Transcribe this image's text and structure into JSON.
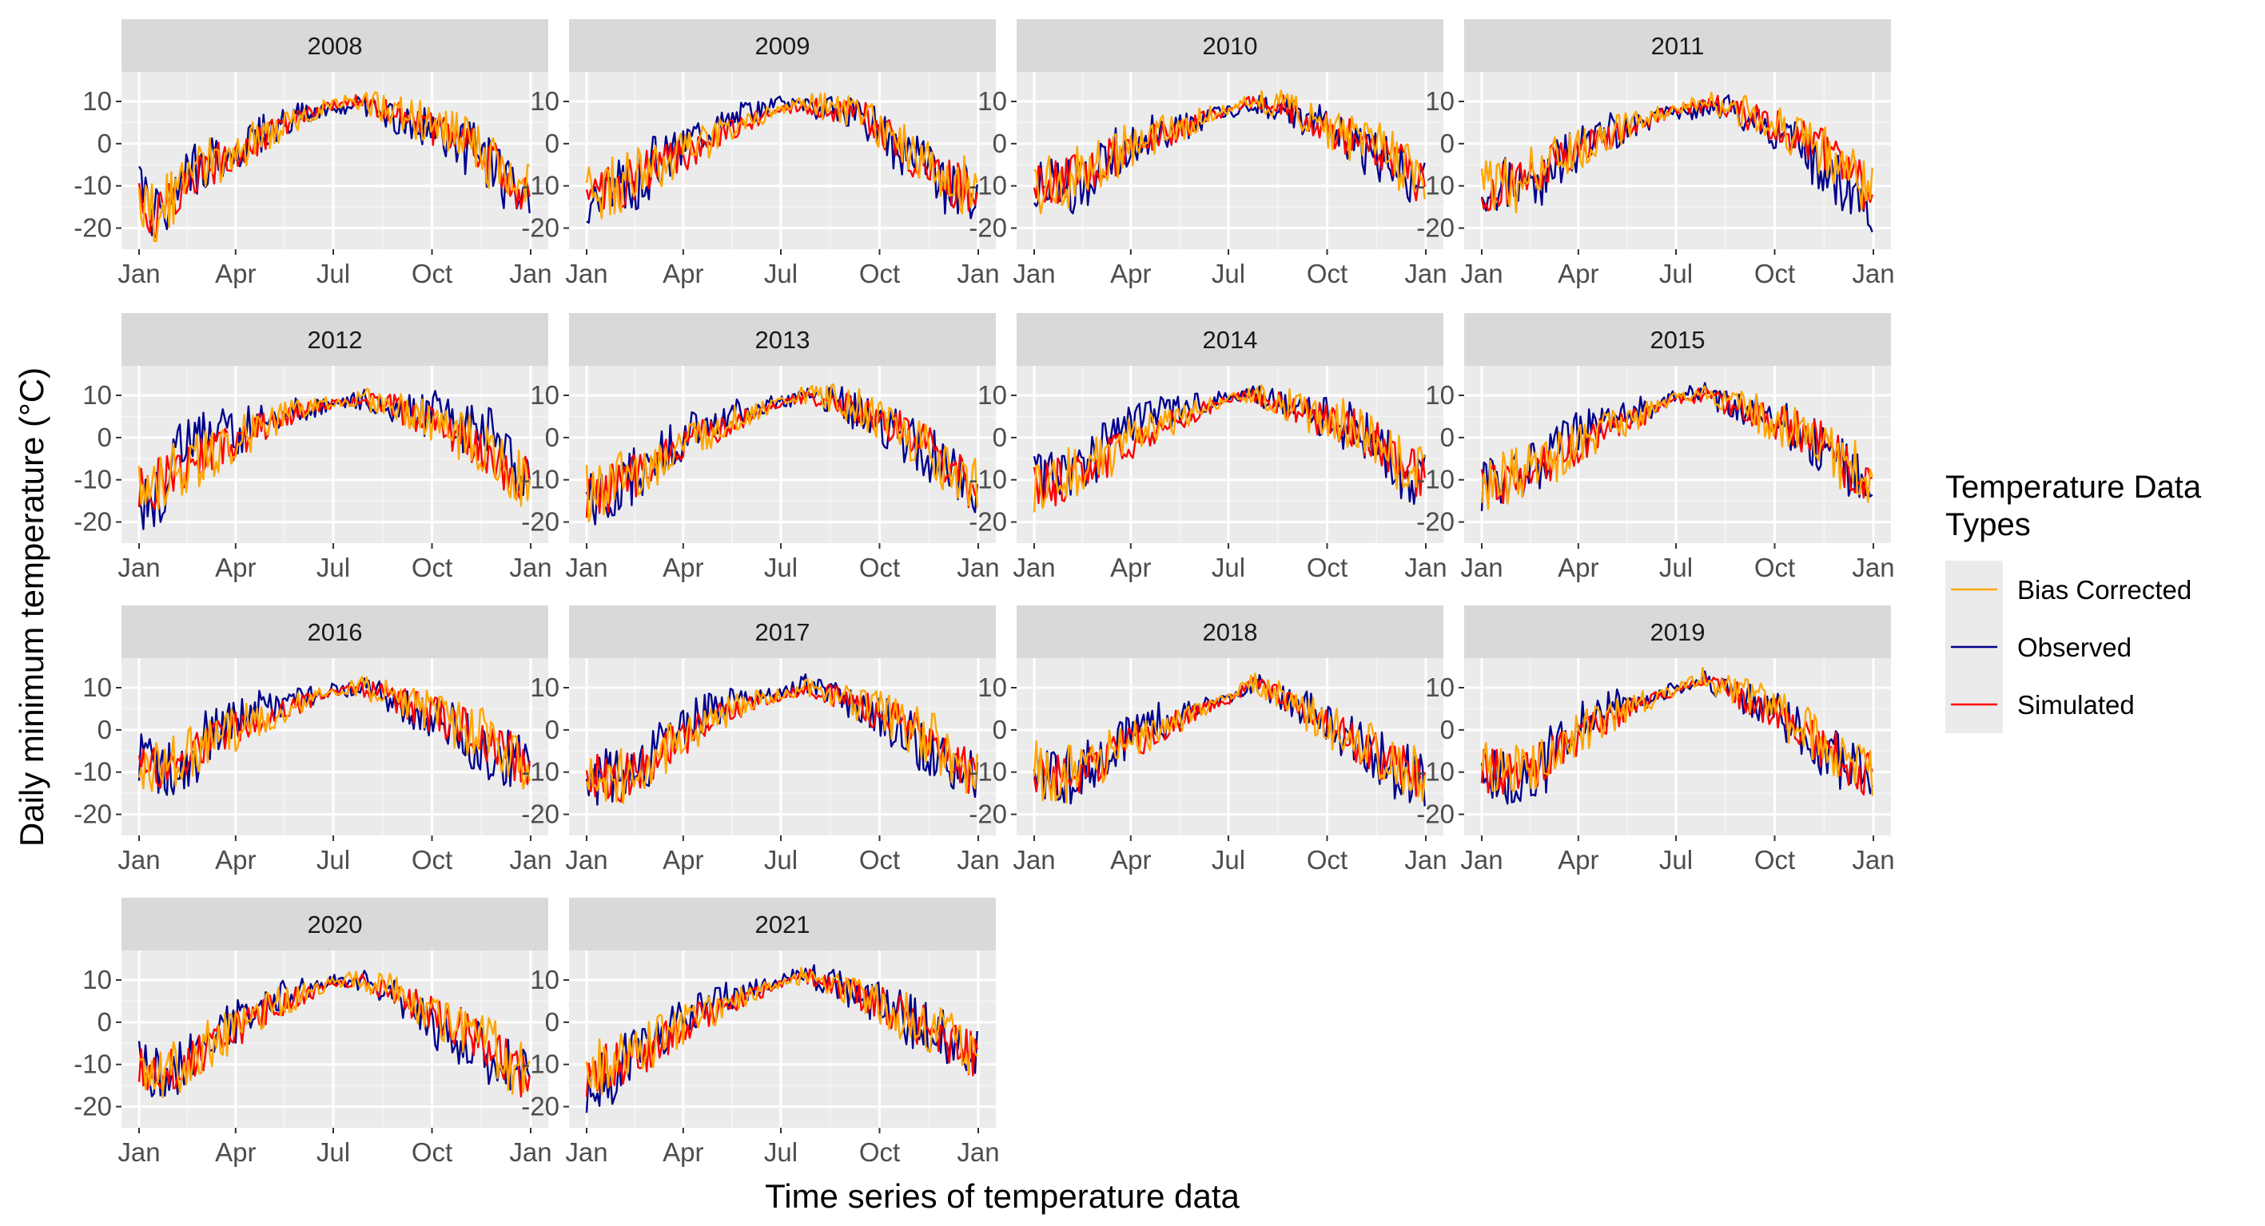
{
  "chart_data": {
    "type": "line",
    "xlabel": "Time series of temperature data",
    "ylabel": "Daily minimum temperature (°C)",
    "ylim": [
      -25,
      17
    ],
    "y_ticks": [
      "10",
      "0",
      "-10",
      "-20"
    ],
    "y_tick_values": [
      10,
      0,
      -10,
      -20
    ],
    "x_ticks": [
      "Jan",
      "Apr",
      "Jul",
      "Oct",
      "Jan"
    ],
    "x_tick_days": [
      0,
      90,
      181,
      273,
      365
    ],
    "grid": true,
    "legend": {
      "title": "Temperature Data Types",
      "position": "right",
      "entries": [
        {
          "label": "Bias Corrected",
          "color": "#FFA500"
        },
        {
          "label": "Observed",
          "color": "#00008B"
        },
        {
          "label": "Simulated",
          "color": "#FF0000"
        }
      ]
    },
    "panels": [
      {
        "year": "2008",
        "anchors": [
          [
            0,
            -12
          ],
          [
            15,
            -18
          ],
          [
            30,
            -13
          ],
          [
            60,
            -6
          ],
          [
            90,
            -2
          ],
          [
            120,
            2
          ],
          [
            150,
            6
          ],
          [
            181,
            9
          ],
          [
            205,
            10
          ],
          [
            230,
            8
          ],
          [
            260,
            5
          ],
          [
            290,
            2
          ],
          [
            320,
            -3
          ],
          [
            340,
            -7
          ],
          [
            365,
            -12
          ]
        ],
        "obs_offset": [
          1,
          2,
          1,
          1,
          1,
          0,
          -1,
          -1,
          0,
          -1,
          0,
          -2,
          -3
        ]
      },
      {
        "year": "2009",
        "anchors": [
          [
            0,
            -12
          ],
          [
            30,
            -10
          ],
          [
            60,
            -6
          ],
          [
            90,
            -3
          ],
          [
            120,
            1
          ],
          [
            150,
            5
          ],
          [
            181,
            8
          ],
          [
            205,
            9
          ],
          [
            230,
            8
          ],
          [
            260,
            6
          ],
          [
            290,
            0
          ],
          [
            320,
            -6
          ],
          [
            340,
            -10
          ],
          [
            365,
            -11
          ]
        ],
        "obs_offset": [
          0,
          -1,
          2,
          4,
          3,
          2,
          1,
          0,
          0,
          -1,
          -1,
          0,
          0
        ]
      },
      {
        "year": "2010",
        "anchors": [
          [
            0,
            -10
          ],
          [
            30,
            -9
          ],
          [
            60,
            -5
          ],
          [
            90,
            -1
          ],
          [
            120,
            2
          ],
          [
            150,
            5
          ],
          [
            181,
            8
          ],
          [
            205,
            10
          ],
          [
            230,
            9
          ],
          [
            260,
            5
          ],
          [
            290,
            2
          ],
          [
            320,
            -1
          ],
          [
            340,
            -5
          ],
          [
            365,
            -10
          ]
        ],
        "obs_offset": [
          0,
          -2,
          1,
          1,
          0,
          0,
          -1,
          -1,
          0,
          -1,
          -1,
          0,
          -1
        ]
      },
      {
        "year": "2011",
        "anchors": [
          [
            0,
            -11
          ],
          [
            30,
            -10
          ],
          [
            60,
            -6
          ],
          [
            90,
            -2
          ],
          [
            120,
            2
          ],
          [
            150,
            5
          ],
          [
            181,
            8
          ],
          [
            205,
            9
          ],
          [
            230,
            9
          ],
          [
            260,
            5
          ],
          [
            290,
            2
          ],
          [
            320,
            -2
          ],
          [
            340,
            -7
          ],
          [
            365,
            -12
          ]
        ],
        "obs_offset": [
          0,
          -2,
          0,
          1,
          0,
          0,
          -1,
          -1,
          -1,
          -2,
          -3,
          -4,
          -3
        ]
      },
      {
        "year": "2012",
        "anchors": [
          [
            0,
            -13
          ],
          [
            30,
            -9
          ],
          [
            60,
            -5
          ],
          [
            90,
            -1
          ],
          [
            120,
            3
          ],
          [
            150,
            6
          ],
          [
            181,
            8
          ],
          [
            205,
            9
          ],
          [
            230,
            8
          ],
          [
            260,
            5
          ],
          [
            290,
            1
          ],
          [
            320,
            -3
          ],
          [
            340,
            -7
          ],
          [
            365,
            -11
          ]
        ],
        "obs_offset": [
          -3,
          5,
          4,
          2,
          1,
          0,
          0,
          0,
          1,
          3,
          5,
          2,
          -3
        ]
      },
      {
        "year": "2013",
        "anchors": [
          [
            0,
            -14
          ],
          [
            30,
            -11
          ],
          [
            60,
            -7
          ],
          [
            90,
            -2
          ],
          [
            120,
            2
          ],
          [
            150,
            5
          ],
          [
            181,
            8
          ],
          [
            205,
            10
          ],
          [
            230,
            9
          ],
          [
            260,
            6
          ],
          [
            290,
            2
          ],
          [
            320,
            -3
          ],
          [
            340,
            -8
          ],
          [
            365,
            -13
          ]
        ],
        "obs_offset": [
          -2,
          0,
          2,
          3,
          2,
          1,
          0,
          0,
          -1,
          -1,
          -1,
          -1,
          2
        ]
      },
      {
        "year": "2014",
        "anchors": [
          [
            0,
            -12
          ],
          [
            30,
            -10
          ],
          [
            60,
            -6
          ],
          [
            90,
            -1
          ],
          [
            120,
            3
          ],
          [
            150,
            6
          ],
          [
            181,
            9
          ],
          [
            205,
            10
          ],
          [
            230,
            8
          ],
          [
            260,
            5
          ],
          [
            290,
            3
          ],
          [
            320,
            -1
          ],
          [
            340,
            -6
          ],
          [
            365,
            -10
          ]
        ],
        "obs_offset": [
          2,
          2,
          3,
          3,
          2,
          1,
          0,
          0,
          0,
          0,
          0,
          -1,
          -1
        ]
      },
      {
        "year": "2015",
        "anchors": [
          [
            0,
            -11
          ],
          [
            30,
            -10
          ],
          [
            60,
            -6
          ],
          [
            90,
            -2
          ],
          [
            120,
            2
          ],
          [
            150,
            5
          ],
          [
            181,
            9
          ],
          [
            205,
            10
          ],
          [
            230,
            8
          ],
          [
            260,
            5
          ],
          [
            290,
            2
          ],
          [
            320,
            -2
          ],
          [
            340,
            -7
          ],
          [
            365,
            -10
          ]
        ],
        "obs_offset": [
          0,
          1,
          3,
          3,
          2,
          1,
          1,
          0,
          0,
          0,
          -1,
          0,
          0
        ]
      },
      {
        "year": "2016",
        "anchors": [
          [
            0,
            -8
          ],
          [
            30,
            -9
          ],
          [
            60,
            -4
          ],
          [
            90,
            0
          ],
          [
            120,
            3
          ],
          [
            150,
            6
          ],
          [
            181,
            9
          ],
          [
            205,
            10
          ],
          [
            230,
            8
          ],
          [
            260,
            5
          ],
          [
            290,
            2
          ],
          [
            320,
            -2
          ],
          [
            340,
            -5
          ],
          [
            365,
            -8
          ]
        ],
        "obs_offset": [
          0,
          -3,
          2,
          3,
          2,
          1,
          0,
          0,
          -1,
          -1,
          -2,
          -1,
          0
        ]
      },
      {
        "year": "2017",
        "anchors": [
          [
            0,
            -10
          ],
          [
            30,
            -12
          ],
          [
            60,
            -7
          ],
          [
            90,
            -2
          ],
          [
            120,
            3
          ],
          [
            150,
            6
          ],
          [
            181,
            8
          ],
          [
            205,
            10
          ],
          [
            230,
            8
          ],
          [
            260,
            5
          ],
          [
            290,
            2
          ],
          [
            320,
            -2
          ],
          [
            340,
            -7
          ],
          [
            365,
            -11
          ]
        ],
        "obs_offset": [
          0,
          -2,
          2,
          3,
          2,
          1,
          1,
          0,
          0,
          -1,
          -3,
          -1,
          -1
        ]
      },
      {
        "year": "2018",
        "anchors": [
          [
            0,
            -10
          ],
          [
            30,
            -11
          ],
          [
            60,
            -8
          ],
          [
            90,
            -3
          ],
          [
            120,
            0
          ],
          [
            150,
            4
          ],
          [
            181,
            7
          ],
          [
            205,
            11
          ],
          [
            230,
            8
          ],
          [
            260,
            3
          ],
          [
            290,
            -2
          ],
          [
            320,
            -6
          ],
          [
            340,
            -9
          ],
          [
            365,
            -11
          ]
        ],
        "obs_offset": [
          0,
          0,
          2,
          3,
          1,
          1,
          0,
          0,
          1,
          1,
          0,
          -1,
          0
        ]
      },
      {
        "year": "2019",
        "anchors": [
          [
            0,
            -10
          ],
          [
            30,
            -11
          ],
          [
            60,
            -7
          ],
          [
            90,
            -2
          ],
          [
            120,
            3
          ],
          [
            150,
            6
          ],
          [
            181,
            9
          ],
          [
            205,
            12
          ],
          [
            230,
            9
          ],
          [
            260,
            6
          ],
          [
            290,
            1
          ],
          [
            320,
            -4
          ],
          [
            340,
            -8
          ],
          [
            365,
            -11
          ]
        ],
        "obs_offset": [
          -1,
          -2,
          1,
          3,
          2,
          1,
          0,
          0,
          0,
          0,
          -1,
          0,
          0
        ]
      },
      {
        "year": "2020",
        "anchors": [
          [
            0,
            -10
          ],
          [
            30,
            -12
          ],
          [
            60,
            -7
          ],
          [
            90,
            -2
          ],
          [
            120,
            3
          ],
          [
            150,
            6
          ],
          [
            181,
            9
          ],
          [
            205,
            10
          ],
          [
            230,
            8
          ],
          [
            260,
            4
          ],
          [
            290,
            0
          ],
          [
            320,
            -4
          ],
          [
            340,
            -9
          ],
          [
            365,
            -14
          ]
        ],
        "obs_offset": [
          0,
          0,
          2,
          3,
          2,
          1,
          0,
          -1,
          -1,
          -3,
          -3,
          -1,
          0
        ]
      },
      {
        "year": "2021",
        "anchors": [
          [
            0,
            -12
          ],
          [
            30,
            -10
          ],
          [
            60,
            -6
          ],
          [
            90,
            -1
          ],
          [
            120,
            3
          ],
          [
            150,
            6
          ],
          [
            181,
            9
          ],
          [
            205,
            11
          ],
          [
            230,
            9
          ],
          [
            260,
            6
          ],
          [
            290,
            2
          ],
          [
            320,
            -2
          ],
          [
            340,
            -5
          ],
          [
            365,
            -8
          ]
        ],
        "obs_offset": [
          -3,
          0,
          1,
          2,
          2,
          1,
          1,
          0,
          0,
          0,
          0,
          0,
          0
        ]
      }
    ]
  }
}
